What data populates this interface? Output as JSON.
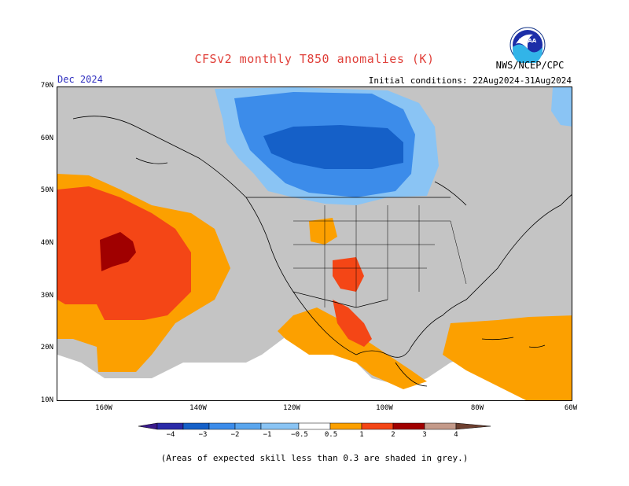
{
  "title": "CFSv2 monthly T850 anomalies (K)",
  "forecast_month": "Dec 2024",
  "initial_conditions": "Initial conditions: 22Aug2024-31Aug2024",
  "organization": "NWS/NCEP/CPC",
  "logo": "NOAA",
  "lat_labels": [
    "70N",
    "60N",
    "50N",
    "40N",
    "30N",
    "20N",
    "10N"
  ],
  "lon_labels": [
    "160W",
    "140W",
    "120W",
    "100W",
    "80W",
    "60W"
  ],
  "colorbar_labels": [
    "−4",
    "−3",
    "−2",
    "−1",
    "−0.5",
    "0.5",
    "1",
    "2",
    "3",
    "4"
  ],
  "colors": {
    "skill_grey": "#c4c4c4",
    "neg_1": "#8ac4f4",
    "neg_2": "#3c8cea",
    "neg_3": "#1560c8",
    "neg_4": "#2a2aa8",
    "neg_5": "#3a1a8c",
    "pos_1": "#fca000",
    "pos_2": "#f44616",
    "pos_3": "#a00000",
    "pos_4": "#c49a8a",
    "pos_5": "#6e4030"
  },
  "footnote": "(Areas of expected skill less than 0.3 are shaded in grey.)"
}
